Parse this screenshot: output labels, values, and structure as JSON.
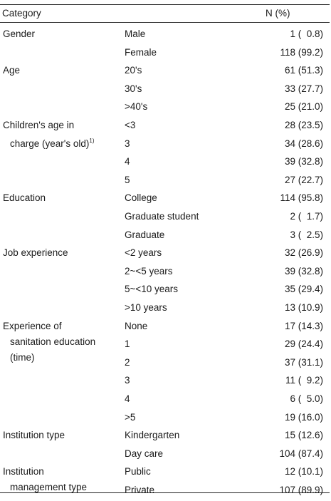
{
  "header": {
    "category": "Category",
    "n": "N (%)"
  },
  "rows": [
    {
      "group": "Gender",
      "sub": "Male",
      "value": "1 (  0.8)"
    },
    {
      "group": "",
      "sub": "Female",
      "value": "118 (99.2)"
    },
    {
      "group": "Age",
      "sub": "20's",
      "value": "61 (51.3)"
    },
    {
      "group": "",
      "sub": "30's",
      "value": "33 (27.7)"
    },
    {
      "group": "",
      "sub": ">40's",
      "value": "25 (21.0)"
    },
    {
      "group": "Children's age in",
      "group2": "charge (year's old)",
      "group2_sup": "1)",
      "sub": "<3",
      "value": "28 (23.5)"
    },
    {
      "group": "",
      "sub": "3",
      "value": "34 (28.6)"
    },
    {
      "group": "",
      "sub": "4",
      "value": "39 (32.8)"
    },
    {
      "group": "",
      "sub": "5",
      "value": "27 (22.7)"
    },
    {
      "group": "Education",
      "sub": "College",
      "value": "114 (95.8)"
    },
    {
      "group": "",
      "sub": "Graduate student",
      "value": "2 (  1.7)"
    },
    {
      "group": "",
      "sub": "Graduate",
      "value": "3 (  2.5)"
    },
    {
      "group": "Job experience",
      "sub": "<2 years",
      "value": "32 (26.9)"
    },
    {
      "group": "",
      "sub": "2~<5 years",
      "value": "39 (32.8)"
    },
    {
      "group": "",
      "sub": "5~<10 years",
      "value": "35 (29.4)"
    },
    {
      "group": "",
      "sub": ">10 years",
      "value": "13 (10.9)"
    },
    {
      "group": "Experience of",
      "group2": "sanitation education",
      "group3": "(time)",
      "sub": "None",
      "value": "17 (14.3)"
    },
    {
      "group": "",
      "sub": "1",
      "value": "29 (24.4)"
    },
    {
      "group": "",
      "sub": "2",
      "value": "37 (31.1)"
    },
    {
      "group": "",
      "sub": "3",
      "value": "11 (  9.2)"
    },
    {
      "group": "",
      "sub": "4",
      "value": "6 (  5.0)"
    },
    {
      "group": "",
      "sub": ">5",
      "value": "19 (16.0)"
    },
    {
      "group": "Institution type",
      "sub": "Kindergarten",
      "value": "15 (12.6)"
    },
    {
      "group": "",
      "sub": "Day care",
      "value": "104 (87.4)"
    },
    {
      "group": "Institution",
      "group2": "management type",
      "sub": "Public",
      "value": "12 (10.1)"
    },
    {
      "group": "",
      "sub": "Private",
      "value": "107 (89.9)"
    }
  ]
}
